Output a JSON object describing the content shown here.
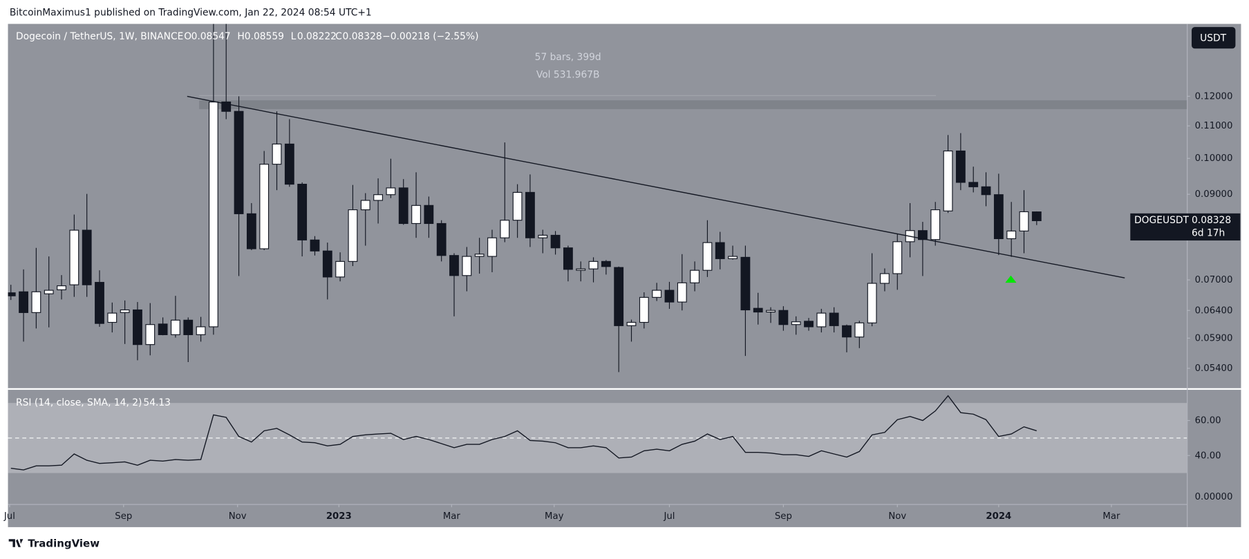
{
  "header": {
    "publisher": "BitcoinMaximus1 published on TradingView.com, Jan 22, 2024 08:54 UTC+1",
    "footer": "TradingView"
  },
  "bottom_axis_label": "0.00000",
  "chart_data": [
    {
      "type": "candlestick",
      "title": "Dogecoin / TetherUS, 1W, BINANCE",
      "legend_keys": [
        "O",
        "H",
        "L",
        "C"
      ],
      "change": "−0.00218 (−2.55%)",
      "measure": [
        "57 bars, 399d",
        "Vol 531.967B"
      ],
      "currency": "USDT",
      "symbol": "DOGEUSDT",
      "countdown": "6d 17h",
      "up_color": "#ffffff",
      "down_color": "#131722",
      "log_scale": true,
      "open": [
        0.0674,
        0.0676,
        0.0636,
        0.0672,
        0.068,
        0.069,
        0.081,
        0.0695,
        0.0618,
        0.0636,
        0.0641,
        0.0579,
        0.0615,
        0.0596,
        0.0622,
        0.0596,
        0.061,
        0.118,
        0.1148,
        0.085,
        0.0767,
        0.0983,
        0.1043,
        0.0927,
        0.0787,
        0.0762,
        0.0706,
        0.0739,
        0.086,
        0.0884,
        0.0899,
        0.0917,
        0.0826,
        0.0871,
        0.0826,
        0.0752,
        0.0709,
        0.075,
        0.075,
        0.0792,
        0.0834,
        0.0905,
        0.0792,
        0.0798,
        0.0769,
        0.072,
        0.0723,
        0.0739,
        0.0726,
        0.0612,
        0.0618,
        0.0665,
        0.0679,
        0.0656,
        0.0694,
        0.072,
        0.0781,
        0.0745,
        0.0748,
        0.0644,
        0.0637,
        0.064,
        0.0614,
        0.062,
        0.061,
        0.0635,
        0.0612,
        0.0592,
        0.0617,
        0.0693,
        0.0713,
        0.0783,
        0.0809,
        0.0788,
        0.0857,
        0.1022,
        0.0932,
        0.092,
        0.0899,
        0.079,
        0.0808,
        0.08547
      ],
      "high": [
        0.069,
        0.0722,
        0.0769,
        0.075,
        0.071,
        0.0848,
        0.0901,
        0.072,
        0.0655,
        0.0659,
        0.0656,
        0.0654,
        0.0627,
        0.0668,
        0.0627,
        0.0628,
        0.15,
        0.152,
        0.12,
        0.0877,
        0.1022,
        0.1148,
        0.1122,
        0.0932,
        0.0796,
        0.0781,
        0.0759,
        0.0925,
        0.0903,
        0.0943,
        0.0999,
        0.0941,
        0.096,
        0.0894,
        0.0834,
        0.0757,
        0.0771,
        0.0792,
        0.0811,
        0.1048,
        0.0927,
        0.0954,
        0.0811,
        0.0808,
        0.0774,
        0.0739,
        0.0748,
        0.0742,
        0.0728,
        0.0623,
        0.0675,
        0.0694,
        0.0696,
        0.0755,
        0.0739,
        0.0834,
        0.0806,
        0.0774,
        0.0774,
        0.0674,
        0.0646,
        0.0648,
        0.0629,
        0.0626,
        0.0643,
        0.0646,
        0.0614,
        0.0621,
        0.0757,
        0.0724,
        0.0802,
        0.0877,
        0.083,
        0.088,
        0.1071,
        0.1077,
        0.0976,
        0.096,
        0.0956,
        0.088,
        0.0911,
        0.08559
      ],
      "low": [
        0.066,
        0.0584,
        0.0607,
        0.0609,
        0.0661,
        0.0666,
        0.0666,
        0.061,
        0.06,
        0.058,
        0.0553,
        0.0561,
        0.0595,
        0.0591,
        0.055,
        0.0584,
        0.0596,
        0.1122,
        0.0708,
        0.0764,
        0.0764,
        0.0911,
        0.092,
        0.075,
        0.0752,
        0.0661,
        0.0697,
        0.0729,
        0.0774,
        0.0826,
        0.089,
        0.0823,
        0.0792,
        0.0792,
        0.0739,
        0.0629,
        0.0677,
        0.0713,
        0.0716,
        0.0782,
        0.0792,
        0.0771,
        0.0757,
        0.0754,
        0.0697,
        0.0697,
        0.0695,
        0.0711,
        0.0534,
        0.0584,
        0.0607,
        0.0658,
        0.0643,
        0.064,
        0.0677,
        0.0706,
        0.0722,
        0.0743,
        0.056,
        0.0614,
        0.0617,
        0.0603,
        0.0596,
        0.0603,
        0.06,
        0.06,
        0.0566,
        0.0573,
        0.0611,
        0.0677,
        0.068,
        0.0748,
        0.0708,
        0.0774,
        0.0852,
        0.0911,
        0.0905,
        0.0869,
        0.0753,
        0.0749,
        0.0757,
        0.08222
      ],
      "close": [
        0.0668,
        0.0636,
        0.0676,
        0.0679,
        0.0688,
        0.081,
        0.069,
        0.0616,
        0.0635,
        0.0641,
        0.0579,
        0.0614,
        0.0596,
        0.0622,
        0.0596,
        0.061,
        0.118,
        0.1148,
        0.085,
        0.0767,
        0.0983,
        0.1043,
        0.0927,
        0.0787,
        0.0762,
        0.0706,
        0.0739,
        0.086,
        0.0884,
        0.0899,
        0.0917,
        0.0826,
        0.0871,
        0.0826,
        0.0752,
        0.0709,
        0.075,
        0.0755,
        0.0792,
        0.0834,
        0.0905,
        0.0792,
        0.0798,
        0.0769,
        0.0722,
        0.0723,
        0.0739,
        0.0728,
        0.0612,
        0.0618,
        0.0665,
        0.0679,
        0.0656,
        0.0694,
        0.072,
        0.0781,
        0.0745,
        0.075,
        0.0641,
        0.0637,
        0.064,
        0.0614,
        0.0619,
        0.061,
        0.0635,
        0.0612,
        0.0592,
        0.0617,
        0.0693,
        0.0713,
        0.0783,
        0.0809,
        0.0788,
        0.086,
        0.1022,
        0.0932,
        0.092,
        0.0899,
        0.079,
        0.0808,
        0.0855,
        0.08328
      ],
      "ylim": [
        0.051,
        0.1484
      ],
      "yticks": [
        {
          "value": 0.12,
          "label": "0.12000"
        },
        {
          "value": 0.11,
          "label": "0.11000"
        },
        {
          "value": 0.1,
          "label": "0.10000"
        },
        {
          "value": 0.09,
          "label": "0.09000"
        },
        {
          "value": 0.07,
          "label": "0.07000"
        },
        {
          "value": 0.064,
          "label": "0.06400"
        },
        {
          "value": 0.059,
          "label": "0.05900"
        },
        {
          "value": 0.054,
          "label": "0.05400"
        }
      ],
      "xlim": [
        -0.23,
        92.86
      ],
      "xticks": [
        {
          "value": -0.1,
          "label": "Jul"
        },
        {
          "value": 8.9,
          "label": "Sep"
        },
        {
          "value": 17.9,
          "label": "Nov"
        },
        {
          "value": 25.9,
          "label": "2023"
        },
        {
          "value": 34.8,
          "label": "Mar"
        },
        {
          "value": 42.9,
          "label": "May"
        },
        {
          "value": 52.0,
          "label": "Jul"
        },
        {
          "value": 61.0,
          "label": "Sep"
        },
        {
          "value": 70.0,
          "label": "Nov"
        },
        {
          "value": 78.0,
          "label": "2024"
        },
        {
          "value": 86.9,
          "label": "Mar"
        }
      ]
    },
    {
      "type": "line",
      "title": "RSI (14, close, SMA, 14, 2)",
      "color": "#131722",
      "values": [
        32.7,
        31.8,
        34.1,
        34.1,
        34.5,
        40.9,
        37.3,
        35.5,
        35.9,
        36.4,
        34.5,
        37.3,
        36.8,
        37.7,
        37.3,
        37.7,
        63.2,
        61.8,
        50.9,
        47.7,
        54.1,
        55.5,
        51.8,
        47.7,
        47.3,
        45.5,
        46.4,
        50.9,
        51.8,
        52.3,
        52.7,
        49.1,
        50.9,
        49.1,
        46.8,
        44.5,
        46.4,
        46.4,
        49.1,
        50.9,
        54.1,
        48.6,
        48.2,
        47.3,
        44.5,
        44.5,
        45.5,
        44.5,
        38.6,
        39.1,
        42.7,
        43.6,
        42.7,
        46.4,
        48.2,
        52.3,
        49.1,
        50.9,
        41.8,
        41.8,
        41.4,
        40.5,
        40.5,
        39.5,
        42.7,
        40.9,
        39.1,
        42.3,
        51.8,
        53.2,
        60.5,
        62.3,
        60.0,
        65.5,
        74.1,
        64.5,
        63.6,
        60.5,
        50.9,
        52.3,
        56.4,
        54.13
      ],
      "bands": [
        30,
        70
      ],
      "midline": 50,
      "ylim": [
        12.3,
        77.3
      ],
      "yticks": [
        {
          "value": 60,
          "label": "60.00"
        },
        {
          "value": 40,
          "label": "40.00"
        }
      ]
    }
  ]
}
